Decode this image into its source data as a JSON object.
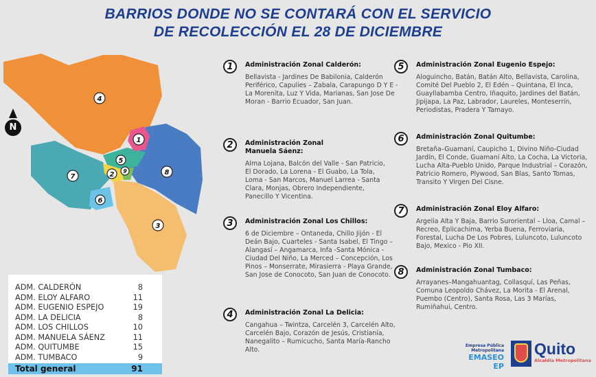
{
  "title": {
    "line1": "BARRIOS DONDE NO SE CONTARÁ CON EL SERVICIO",
    "line2": "DE RECOLECCIÓN EL 28 DE DICIEMBRE"
  },
  "north": "N",
  "map_labels": [
    "1",
    "2",
    "3",
    "4",
    "5",
    "6",
    "7",
    "8",
    "9"
  ],
  "colors": {
    "title": "#1d3d8f",
    "calderon": "#e8588e",
    "manuela_saenz": "#f3d54a",
    "los_chillos": "#f5bd6e",
    "la_delicia": "#f0913a",
    "eugenio_espejo": "#3db39b",
    "quitumbe": "#6cc3e8",
    "eloy_alfaro": "#4aa9b3",
    "tumbaco": "#4a7cc4",
    "total_row": "#6ec1ea"
  },
  "zones": [
    {
      "num": "1",
      "head": "Administración Zonal Calderón:",
      "body": "Bellavista - Jardines De Babilonia, Calderón Periférico, Capulies – Zabala, Carapungo D Y E - La Morenita, Luz Y Vida, Marianas, San Jose De Moran - Barrio Ecuador, San Juan."
    },
    {
      "num": "2",
      "head": "Administración Zonal Manuela Sáenz:",
      "body": "Alma Lojana, Balcón del Valle - San Patricio, El Dorado, La Lorena - El Guabo, La Tola, Loma - San Marcos, Manuel Larrea - Santa Clara, Monjas, Obrero Independiente, Panecillo Y Vicentina."
    },
    {
      "num": "3",
      "head": "Administración Zonal Los Chillos:",
      "body": "6 de Diciembre – Ontaneda, Chillo Jijón - El Deán Bajo, Cuarteles - Santa Isabel, El Tingo – Alangasí – Angamarca, Infa -Santa Mónica - Ciudad Del Niño, La Merced – Concepción, Los Pinos – Monserrate, Mirasierra - Playa Grande, San Jose de Conocoto, San Juan de Conocoto."
    },
    {
      "num": "4",
      "head": "Administración Zonal La Delicia:",
      "body": "Cangahua – Twintza, Carcelén 3, Carcelén Alto, Carcelén Bajo, Corazón de Jesús, Cristianía, Nanegalito – Rumicucho, Santa María-Rancho Alto."
    },
    {
      "num": "5",
      "head": "Administración Zonal Eugenio Espejo:",
      "body": "Aloguincho, Batán, Batán Alto, Bellavista, Carolina, Comité Del Pueblo 2, El Edén – Quintana, El Inca, Guayllabamba Centro, Iñaquito, Jardines del Batán, Jipijapa, La Paz, Labrador, Laureles, Monteserrín, Periodistas, Pradera Y Tamayo."
    },
    {
      "num": "6",
      "head": "Administración Zonal Quitumbe:",
      "body": "Bretaña–Guamaní, Caupicho 1, Divino Niño-Ciudad Jardín, El Conde, Guamaní Alto, La Cocha, La Victoria, Lucha Alta-Pueblo Unido, Parque Industrial – Corazón, Patricio Romero, Plywood, San Blas, Santo Tomas, Transito Y Virgen Del Cisne."
    },
    {
      "num": "7",
      "head": "Administración Zonal Eloy Alfaro:",
      "body": "Argelia Alta Y Baja, Barrio Suroriental – Lloa, Camal – Recreo, Eplicachima, Yerba Buena, Ferroviaria, Forestal, Lucha De Los Pobres, Luluncoto, Luluncoto Bajo, Mexico - Pio XII."
    },
    {
      "num": "8",
      "head": "Administración Zonal Tumbaco:",
      "body": "Arrayanes–Mangahuantag, Collasquí, Las Peñas, Comuna Leopoldo Chávez, La Morita - El Arenal, Puembo (Centro), Santa Rosa, Las 3 Marías, Rumiñahui, Centro."
    }
  ],
  "table": {
    "rows": [
      {
        "name": "ADM. CALDERÓN",
        "count": "8"
      },
      {
        "name": "ADM. ELOY ALFARO",
        "count": "11"
      },
      {
        "name": "ADM. EUGENIO ESPEJO",
        "count": "19"
      },
      {
        "name": "ADM. LA DELICIA",
        "count": "8"
      },
      {
        "name": "ADM. LOS CHILLOS",
        "count": "10"
      },
      {
        "name": "ADM. MANUELA SÁENZ",
        "count": "11"
      },
      {
        "name": "ADM. QUITUMBE",
        "count": "15"
      },
      {
        "name": "ADM. TUMBACO",
        "count": "9"
      }
    ],
    "total_label": "Total general",
    "total": "91"
  },
  "logos": {
    "emaseo_small1": "Empresa Pública",
    "emaseo_small2": "Metropolitana",
    "emaseo": "EMASEO EP",
    "quito": "Quito",
    "quito_sub": "Alcaldía Metropolitana"
  }
}
